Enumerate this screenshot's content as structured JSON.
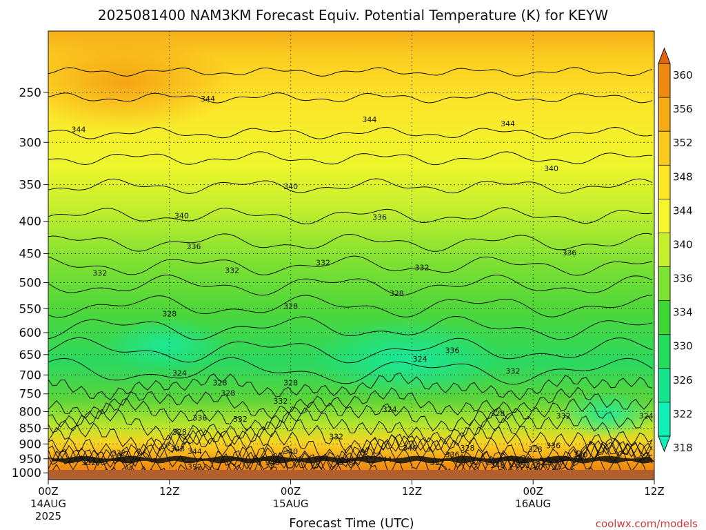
{
  "chart_data": {
    "type": "heatmap",
    "title": "2025081400 NAM3KM Forecast Equiv. Potential Temperature (K) for KEYW",
    "xlabel": "Forecast Time (UTC)",
    "credit": "coolwx.com/models",
    "y_axis": {
      "scale": "log-pressure",
      "range": [
        1025,
        200
      ],
      "ticks": [
        "250",
        "300",
        "350",
        "400",
        "450",
        "500",
        "550",
        "600",
        "650",
        "700",
        "750",
        "800",
        "850",
        "900",
        "950",
        "1000"
      ]
    },
    "x_axis": {
      "range_hours": [
        0,
        60
      ],
      "ticks": [
        {
          "hour": 0,
          "label": "00Z",
          "sub": "14AUG",
          "sub2": "2025"
        },
        {
          "hour": 12,
          "label": "12Z",
          "sub": "",
          "sub2": ""
        },
        {
          "hour": 24,
          "label": "00Z",
          "sub": "15AUG",
          "sub2": ""
        },
        {
          "hour": 36,
          "label": "12Z",
          "sub": "",
          "sub2": ""
        },
        {
          "hour": 48,
          "label": "00Z",
          "sub": "16AUG",
          "sub2": ""
        },
        {
          "hour": 60,
          "label": "12Z",
          "sub": "",
          "sub2": ""
        }
      ]
    },
    "colorbar": {
      "levels": [
        "360",
        "356",
        "352",
        "348",
        "344",
        "340",
        "336",
        "334",
        "330",
        "326",
        "322",
        "318"
      ],
      "colors": [
        "#e4660c",
        "#ef8a10",
        "#f6ab16",
        "#fbcc1e",
        "#fde828",
        "#f5f72c",
        "#c6f02e",
        "#7ee231",
        "#3ed636",
        "#22dc5c",
        "#17e58e",
        "#12f0b8"
      ]
    },
    "contour_labels": [
      {
        "text": "344",
        "hour": 15.8,
        "p": 256
      },
      {
        "text": "344",
        "hour": 3.0,
        "p": 286
      },
      {
        "text": "344",
        "hour": 31.8,
        "p": 276
      },
      {
        "text": "344",
        "hour": 45.5,
        "p": 280
      },
      {
        "text": "340",
        "hour": 24.0,
        "p": 352
      },
      {
        "text": "340",
        "hour": 49.8,
        "p": 330
      },
      {
        "text": "340",
        "hour": 13.2,
        "p": 392
      },
      {
        "text": "336",
        "hour": 32.8,
        "p": 394
      },
      {
        "text": "336",
        "hour": 14.4,
        "p": 438
      },
      {
        "text": "336",
        "hour": 51.6,
        "p": 448
      },
      {
        "text": "332",
        "hour": 5.1,
        "p": 483
      },
      {
        "text": "332",
        "hour": 18.2,
        "p": 478
      },
      {
        "text": "332",
        "hour": 27.2,
        "p": 465
      },
      {
        "text": "332",
        "hour": 37.0,
        "p": 473
      },
      {
        "text": "328",
        "hour": 34.5,
        "p": 520
      },
      {
        "text": "328",
        "hour": 12.0,
        "p": 560
      },
      {
        "text": "328",
        "hour": 24.0,
        "p": 545
      },
      {
        "text": "324",
        "hour": 36.8,
        "p": 660
      },
      {
        "text": "324",
        "hour": 13.0,
        "p": 695
      },
      {
        "text": "336",
        "hour": 40.0,
        "p": 640
      },
      {
        "text": "332",
        "hour": 46.0,
        "p": 690
      },
      {
        "text": "328",
        "hour": 17.0,
        "p": 720
      },
      {
        "text": "328",
        "hour": 17.8,
        "p": 748
      },
      {
        "text": "328",
        "hour": 24.0,
        "p": 720
      },
      {
        "text": "332",
        "hour": 23.0,
        "p": 770
      },
      {
        "text": "324",
        "hour": 33.8,
        "p": 793
      },
      {
        "text": "328",
        "hour": 44.5,
        "p": 805
      },
      {
        "text": "332",
        "hour": 51.0,
        "p": 812
      },
      {
        "text": "324",
        "hour": 59.2,
        "p": 812
      },
      {
        "text": "336",
        "hour": 15.0,
        "p": 818
      },
      {
        "text": "332",
        "hour": 19.0,
        "p": 822
      },
      {
        "text": "328",
        "hour": 13.0,
        "p": 862
      },
      {
        "text": "332",
        "hour": 28.5,
        "p": 876
      },
      {
        "text": "336",
        "hour": 50.0,
        "p": 905
      },
      {
        "text": "328",
        "hour": 48.2,
        "p": 918
      },
      {
        "text": "348",
        "hour": 12.8,
        "p": 915
      },
      {
        "text": "344",
        "hour": 14.5,
        "p": 925
      },
      {
        "text": "340",
        "hour": 24.0,
        "p": 925
      },
      {
        "text": "340",
        "hour": 35.8,
        "p": 913
      },
      {
        "text": "328",
        "hour": 41.5,
        "p": 913
      },
      {
        "text": "336",
        "hour": 40.0,
        "p": 935
      },
      {
        "text": "332",
        "hour": 7.0,
        "p": 930
      },
      {
        "text": "340",
        "hour": 52.7,
        "p": 935
      },
      {
        "text": "336",
        "hour": 29.5,
        "p": 955
      },
      {
        "text": "344",
        "hour": 33.3,
        "p": 952
      },
      {
        "text": "332",
        "hour": 4.0,
        "p": 962
      },
      {
        "text": "348",
        "hour": 22.2,
        "p": 962
      },
      {
        "text": "332",
        "hour": 38.5,
        "p": 962
      },
      {
        "text": "348",
        "hour": 44.5,
        "p": 972
      },
      {
        "text": "352",
        "hour": 47.0,
        "p": 972
      },
      {
        "text": "344",
        "hour": 49.0,
        "p": 968
      },
      {
        "text": "352",
        "hour": 14.5,
        "p": 978
      }
    ]
  }
}
